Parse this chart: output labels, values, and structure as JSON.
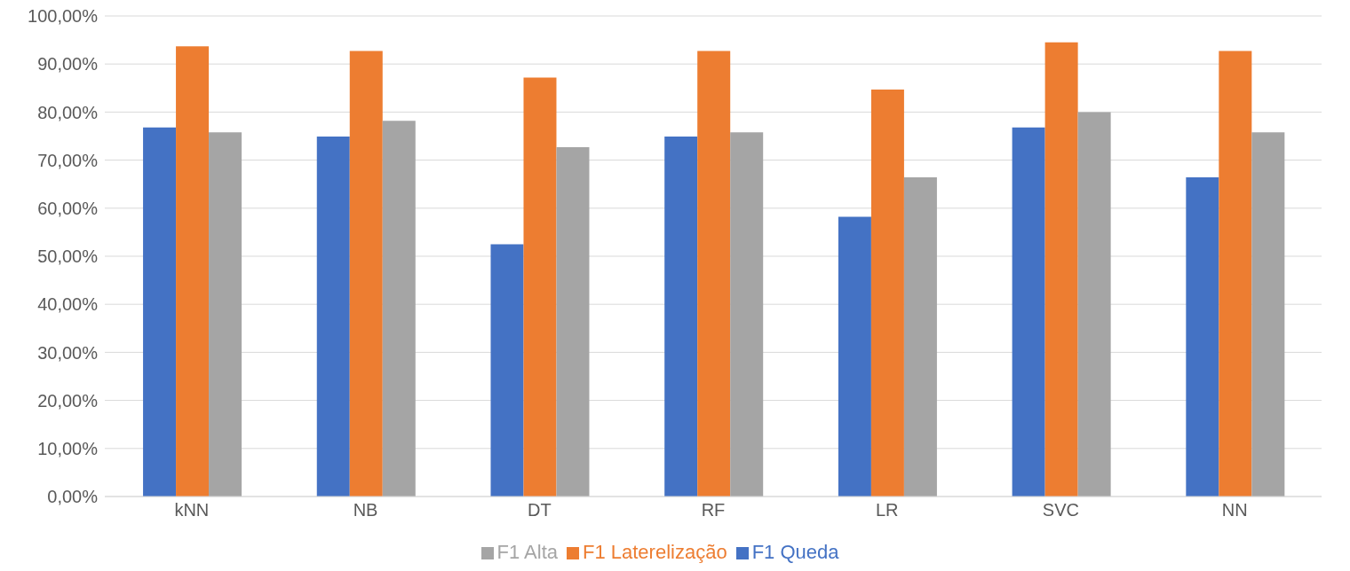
{
  "chart_data": {
    "type": "bar",
    "categories": [
      "kNN",
      "NB",
      "DT",
      "RF",
      "LR",
      "SVC",
      "NN"
    ],
    "series": [
      {
        "name": "F1 Queda",
        "color": "#4472c4",
        "values": [
          76.8,
          74.9,
          52.5,
          74.9,
          58.2,
          76.8,
          66.4
        ]
      },
      {
        "name": "F1 Laterelização",
        "color": "#ed7d31",
        "values": [
          93.7,
          92.7,
          87.2,
          92.7,
          84.7,
          94.5,
          92.7
        ]
      },
      {
        "name": "F1 Alta",
        "color": "#a5a5a5",
        "values": [
          75.8,
          78.2,
          72.7,
          75.8,
          66.4,
          80.0,
          75.8
        ]
      }
    ],
    "ylim": [
      0,
      100
    ],
    "yticks": [
      {
        "value": 0,
        "label": "0,00%"
      },
      {
        "value": 10,
        "label": "10,00%"
      },
      {
        "value": 20,
        "label": "20,00%"
      },
      {
        "value": 30,
        "label": "30,00%"
      },
      {
        "value": 40,
        "label": "40,00%"
      },
      {
        "value": 50,
        "label": "50,00%"
      },
      {
        "value": 60,
        "label": "60,00%"
      },
      {
        "value": 70,
        "label": "70,00%"
      },
      {
        "value": 80,
        "label": "80,00%"
      },
      {
        "value": 90,
        "label": "90,00%"
      },
      {
        "value": 100,
        "label": "100,00%"
      }
    ],
    "grid": "y",
    "legend": "bottom"
  }
}
